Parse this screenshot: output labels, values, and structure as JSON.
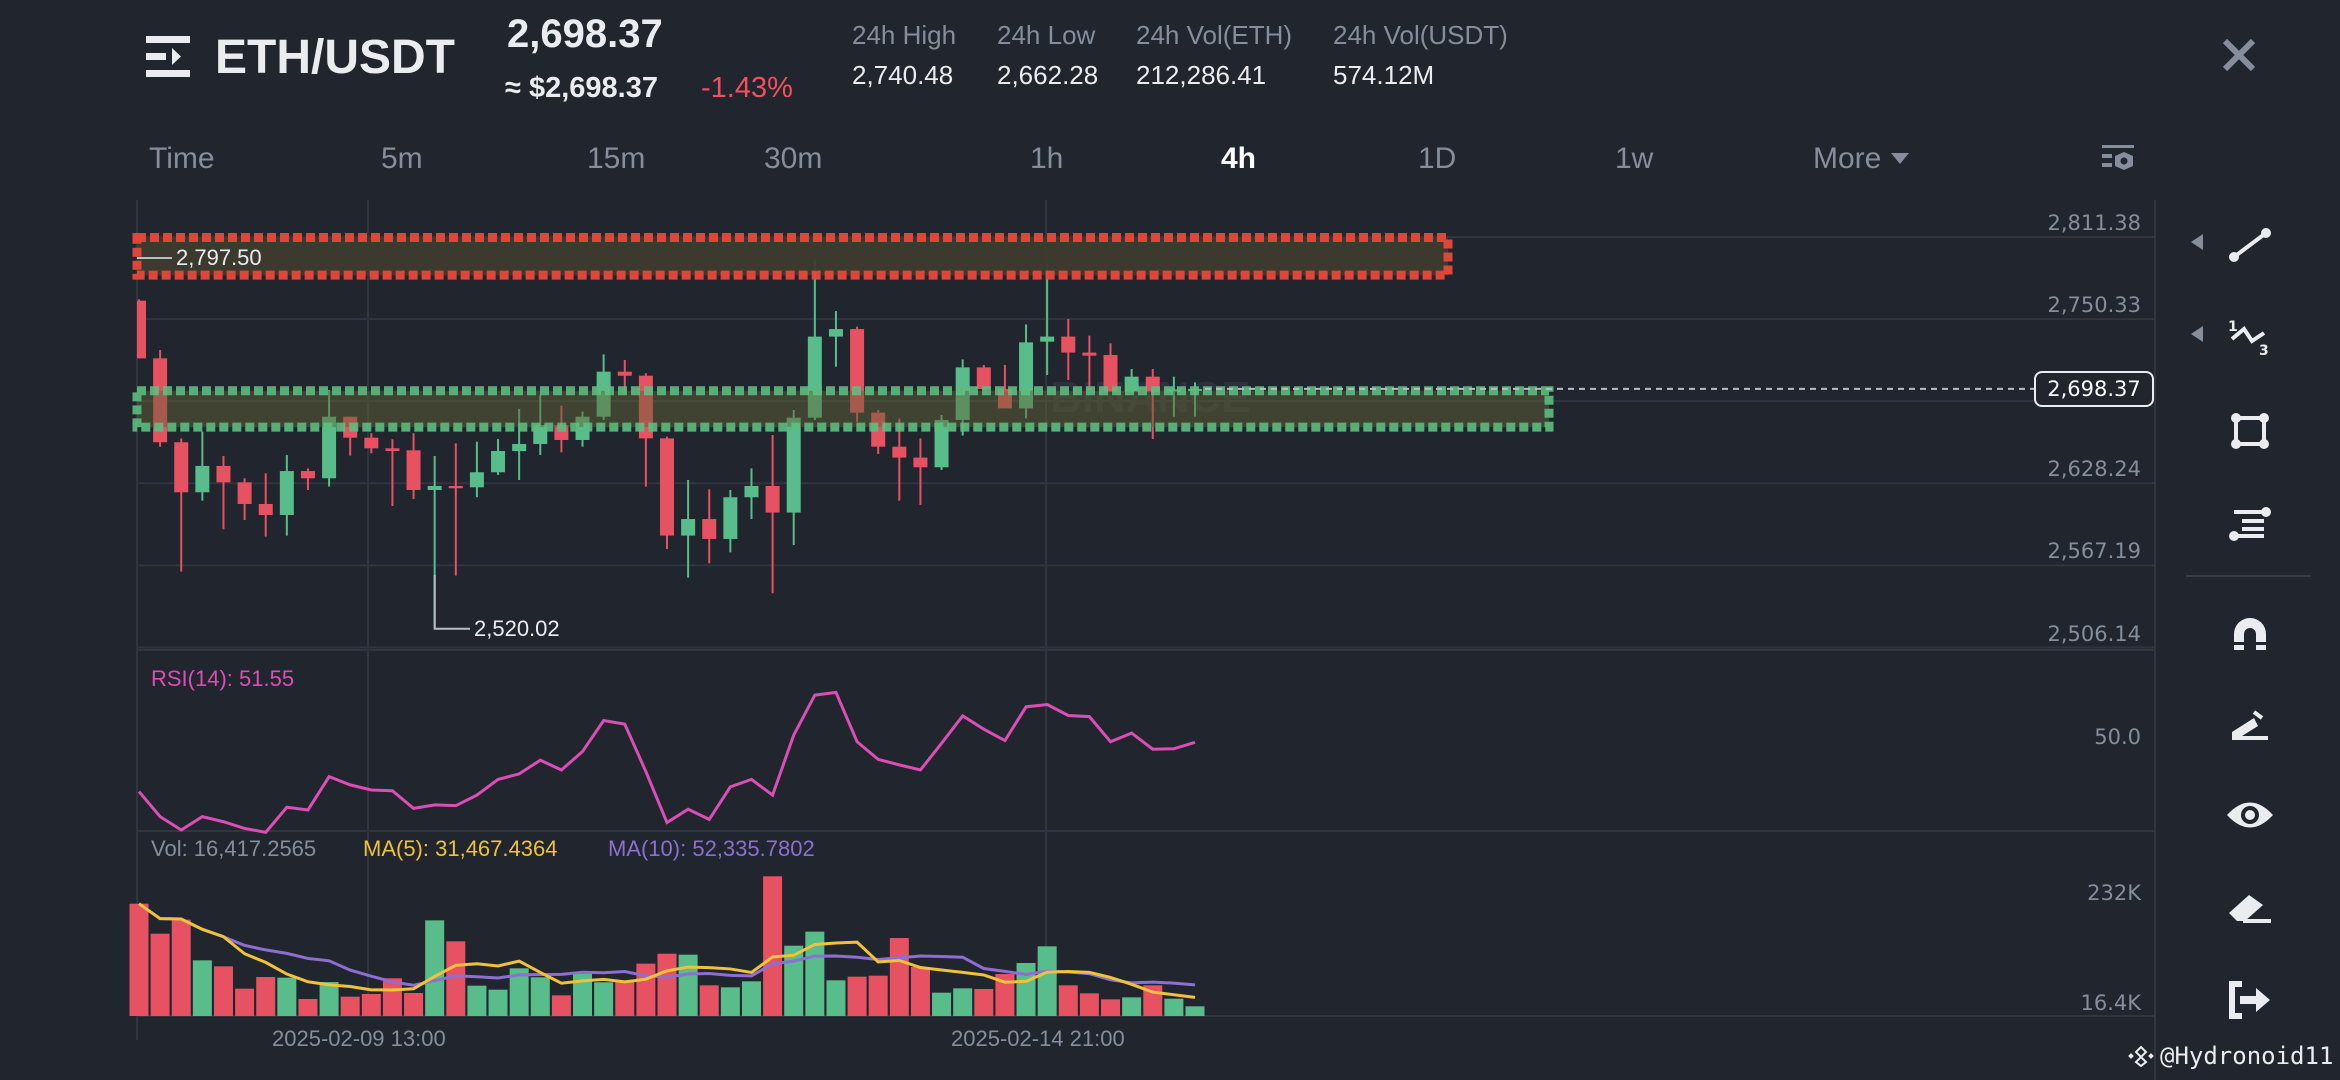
{
  "header": {
    "pair": "ETH/USDT",
    "price": "2,698.37",
    "price_usd": "≈ $2,698.37",
    "change": "-1.43%",
    "stats": [
      {
        "label": "24h High",
        "value": "2,740.48"
      },
      {
        "label": "24h Low",
        "value": "2,662.28"
      },
      {
        "label": "24h Vol(ETH)",
        "value": "212,286.41"
      },
      {
        "label": "24h Vol(USDT)",
        "value": "574.12M"
      }
    ],
    "close_icon": "close-icon"
  },
  "timeframes": {
    "items": [
      "Time",
      "5m",
      "15m",
      "30m",
      "1h",
      "4h",
      "1D",
      "1w"
    ],
    "active": "4h",
    "more_label": "More"
  },
  "price_axis": {
    "labels": [
      "2,811.38",
      "2,750.33",
      "2,628.24",
      "2,567.19",
      "2,506.14"
    ],
    "current_price": "2,698.37"
  },
  "annotations": {
    "high_label": "2,797.50",
    "low_label": "2,520.02"
  },
  "rsi": {
    "label": "RSI(14): 51.55",
    "axis_label": "50.0"
  },
  "volume": {
    "vol_label": "Vol: 16,417.2565",
    "ma5_label": "MA(5): 31,467.4364",
    "ma10_label": "MA(10): 52,335.7802",
    "axis_top": "232K",
    "axis_bottom": "16.4K"
  },
  "dates": [
    "2025-02-09 13:00",
    "2025-02-14 21:00"
  ],
  "toolbar": [
    "trend-line-icon",
    "fib-wave-icon",
    "rectangle-icon",
    "position-icon",
    "magnet-icon",
    "pencil-icon",
    "eye-icon",
    "eraser-icon",
    "exit-icon"
  ],
  "watermark": "@Hydronoid11",
  "colors": {
    "background": "#21252e",
    "up": "#58bd8a",
    "down": "#e75263",
    "rsi": "#d94fb5",
    "ma5": "#f0c23a",
    "ma10": "#8c6fd0",
    "zone_red": "#e8483a",
    "zone_green": "#5cbf7f"
  },
  "chart_data": {
    "type": "candlestick",
    "interval": "4h",
    "ylim": [
      2506.14,
      2811.38
    ],
    "zones": [
      {
        "kind": "resistance",
        "low": 2783,
        "high": 2811
      },
      {
        "kind": "support",
        "low": 2670,
        "high": 2697
      }
    ],
    "ohlc": [
      [
        2764,
        2765,
        2721.1,
        2721.1
      ],
      [
        2721.1,
        2727.3,
        2655.4,
        2658.7
      ],
      [
        2658.7,
        2661.6,
        2562.5,
        2621.5
      ],
      [
        2621.5,
        2666.6,
        2615.3,
        2641.1
      ],
      [
        2641.1,
        2648.5,
        2594.0,
        2628.9
      ],
      [
        2628.9,
        2631.9,
        2600.9,
        2612.8
      ],
      [
        2612.8,
        2635.6,
        2588.5,
        2604.6
      ],
      [
        2604.6,
        2649.2,
        2589.3,
        2637.3
      ],
      [
        2637.3,
        2639.3,
        2623.2,
        2631.9
      ],
      [
        2631.9,
        2697.6,
        2625.7,
        2677.7
      ],
      [
        2677.7,
        2677.7,
        2648.8,
        2662.1
      ],
      [
        2662.1,
        2665.4,
        2650.5,
        2654.2
      ],
      [
        2654.2,
        2660.9,
        2611.3,
        2652.2
      ],
      [
        2652.7,
        2665.4,
        2616.5,
        2623.2
      ],
      [
        2623.2,
        2648.5,
        2520.02,
        2626.2
      ],
      [
        2626.2,
        2657.9,
        2559.5,
        2624.5
      ],
      [
        2625.2,
        2659.1,
        2617.8,
        2636.4
      ],
      [
        2636.4,
        2661.1,
        2634.4,
        2652.2
      ],
      [
        2652.2,
        2683.5,
        2630.6,
        2657.4
      ],
      [
        2657.4,
        2693.9,
        2649.2,
        2671.5
      ],
      [
        2671.5,
        2685.9,
        2651.2,
        2660.4
      ],
      [
        2660.4,
        2681.5,
        2655.4,
        2677.7
      ],
      [
        2677.7,
        2724.1,
        2675.3,
        2711.2
      ],
      [
        2711.2,
        2719.9,
        2695.1,
        2708.2
      ],
      [
        2708.2,
        2710.0,
        2625.7,
        2661.6
      ],
      [
        2661.6,
        2662.9,
        2579.3,
        2589.3
      ],
      [
        2589.3,
        2630.6,
        2558.0,
        2601.6
      ],
      [
        2601.6,
        2623.7,
        2568.7,
        2586.8
      ],
      [
        2586.8,
        2623.2,
        2576.8,
        2617.8
      ],
      [
        2617.8,
        2639.3,
        2601.6,
        2626.2
      ],
      [
        2626.2,
        2664.1,
        2546.4,
        2606.4
      ],
      [
        2606.4,
        2682.7,
        2582.3,
        2677.0
      ],
      [
        2677.0,
        2794.3,
        2675.3,
        2737.3
      ],
      [
        2737.3,
        2756.3,
        2714.9,
        2742.9
      ],
      [
        2742.9,
        2744.7,
        2674.0,
        2680.7
      ],
      [
        2680.7,
        2682.7,
        2650.0,
        2655.4
      ],
      [
        2655.4,
        2676.5,
        2615.3,
        2647.3
      ],
      [
        2647.3,
        2661.6,
        2612.1,
        2640.1
      ],
      [
        2640.1,
        2679.0,
        2638.1,
        2675.3
      ],
      [
        2675.3,
        2720.4,
        2663.6,
        2714.4
      ],
      [
        2714.4,
        2716.2,
        2697.6,
        2698.3
      ],
      [
        2698.3,
        2716.2,
        2683.9,
        2683.9
      ],
      [
        2683.9,
        2746.4,
        2676.5,
        2733.0
      ],
      [
        2733.5,
        2791.0,
        2708.7,
        2737.3
      ],
      [
        2737.3,
        2750.4,
        2705.0,
        2725.4
      ],
      [
        2725.4,
        2738.0,
        2697.6,
        2723.1
      ],
      [
        2723.6,
        2732.3,
        2696.3,
        2696.3
      ],
      [
        2696.3,
        2713.2,
        2695.1,
        2707.5
      ],
      [
        2707.5,
        2713.2,
        2661.1,
        2696.3
      ],
      [
        2696.3,
        2707.5,
        2677.7,
        2698.0
      ],
      [
        2697.0,
        2703.3,
        2677.7,
        2698.37
      ]
    ],
    "volume": [
      190700,
      139800,
      163600,
      94500,
      84300,
      46400,
      66200,
      65100,
      28900,
      57700,
      32800,
      37400,
      64000,
      39100,
      162400,
      126800,
      51500,
      44700,
      80900,
      65700,
      35100,
      71900,
      57200,
      59400,
      88900,
      105800,
      104100,
      52100,
      48700,
      58900,
      237200,
      119400,
      143200,
      60600,
      66800,
      68500,
      132400,
      83200,
      39600,
      47000,
      45800,
      71300,
      90000,
      118300,
      52100,
      38500,
      28300,
      31700,
      52100,
      29400,
      16417
    ],
    "rsi": [
      39.0,
      32.6,
      29.2,
      32.6,
      31.3,
      29.6,
      28.6,
      35.0,
      34.3,
      42.8,
      40.7,
      39.4,
      39.2,
      34.7,
      35.6,
      35.4,
      38.1,
      42.1,
      43.5,
      47.0,
      44.5,
      49.2,
      57.1,
      56.2,
      44.1,
      31.1,
      34.5,
      31.9,
      40.2,
      42.1,
      38.1,
      53.4,
      63.6,
      64.3,
      51.7,
      47.2,
      45.8,
      44.5,
      51.3,
      58.3,
      54.9,
      52.0,
      60.6,
      61.2,
      58.4,
      58.1,
      51.7,
      53.9,
      49.8,
      49.9,
      51.55
    ]
  }
}
